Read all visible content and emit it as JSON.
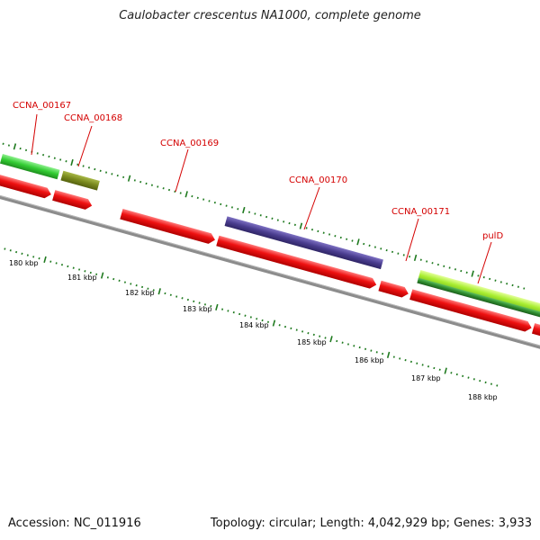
{
  "title": "Caulobacter crescentus NA1000, complete genome",
  "accession": "Accession: NC_011916",
  "topology": "Topology: circular; Length: 4,042,929 bp; Genes: 3,933",
  "colors": {
    "backbone": "#8c8c8c",
    "cds": "#ee1111",
    "tick": "#1f7a1f",
    "label": "#d40000",
    "green_feature": "#33cc33",
    "olive_feature": "#7a8a1e",
    "purple_feature": "#4a3d8f",
    "lime_feature": "#aaee33",
    "dark_green_feature": "#2e8b2e"
  },
  "gene_labels": [
    {
      "text": "CCNA_00167"
    },
    {
      "text": "CCNA_00168"
    },
    {
      "text": "CCNA_00169"
    },
    {
      "text": "CCNA_00170"
    },
    {
      "text": "CCNA_00171"
    },
    {
      "text": "pulD"
    }
  ],
  "kbp_labels": [
    {
      "text": "180 kbp"
    },
    {
      "text": "181 kbp"
    },
    {
      "text": "182 kbp"
    },
    {
      "text": "183 kbp"
    },
    {
      "text": "184 kbp"
    },
    {
      "text": "185 kbp"
    },
    {
      "text": "186 kbp"
    },
    {
      "text": "187 kbp"
    },
    {
      "text": "188 kbp"
    }
  ]
}
